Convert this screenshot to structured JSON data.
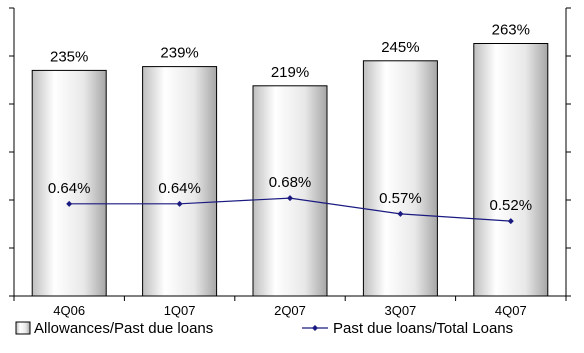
{
  "chart_data": {
    "type": "bar",
    "categories": [
      "4Q06",
      "1Q07",
      "2Q07",
      "3Q07",
      "4Q07"
    ],
    "series": [
      {
        "name": "Allowances/Past due loans",
        "type": "bar",
        "axis": "left",
        "values": [
          235,
          239,
          219,
          245,
          263
        ],
        "labels": [
          "235%",
          "239%",
          "219%",
          "245%",
          "263%"
        ]
      },
      {
        "name": "Past due loans/Total Loans",
        "type": "line",
        "axis": "right",
        "values": [
          0.64,
          0.64,
          0.68,
          0.57,
          0.52
        ],
        "labels": [
          "0.64%",
          "0.64%",
          "0.68%",
          "0.57%",
          "0.52%"
        ]
      }
    ],
    "ylim_left": [
      0,
      300
    ],
    "ylim_right": [
      0,
      2.0
    ],
    "grid": false,
    "legend": "bottom",
    "colors": {
      "bar_fill_light": "#ffffff",
      "bar_fill_dark": "#b8b8b8",
      "bar_stroke": "#000000",
      "line": "#1a1a80",
      "axis": "#000000"
    }
  }
}
